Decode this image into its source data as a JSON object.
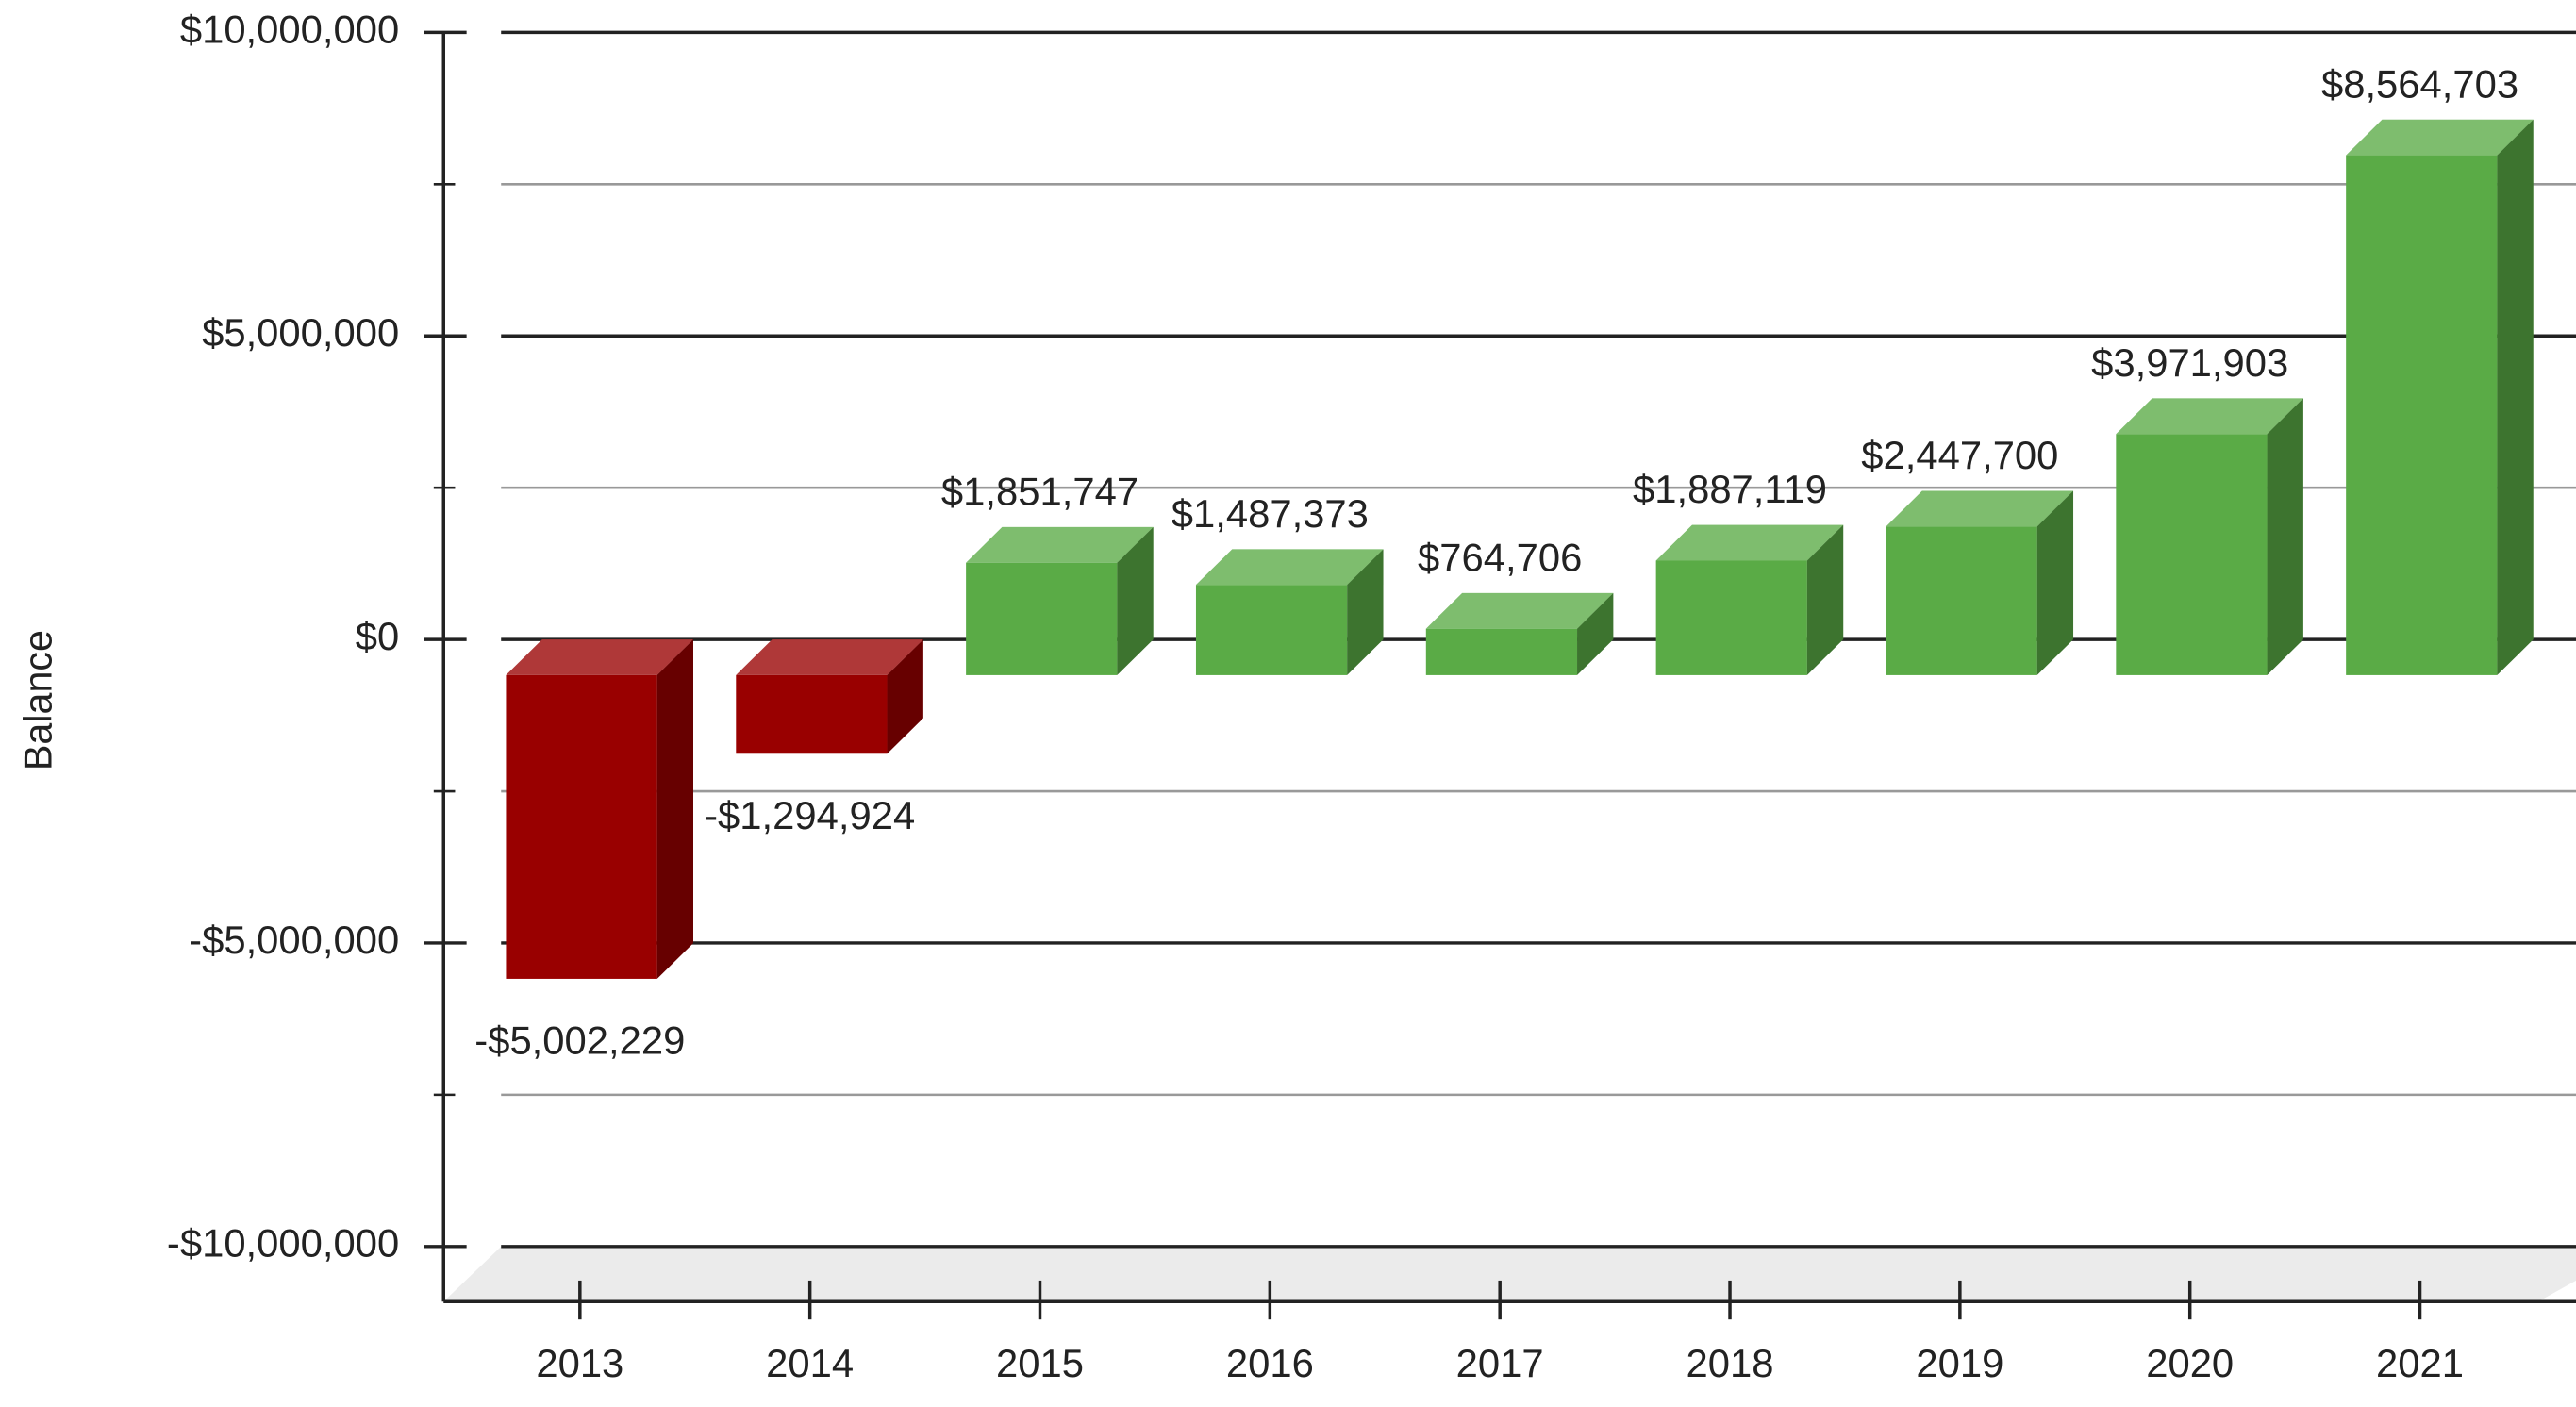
{
  "chart_data": {
    "type": "bar3d",
    "y_label": "Balance",
    "categories": [
      "2013",
      "2014",
      "2015",
      "2016",
      "2017",
      "2018",
      "2019",
      "2020",
      "2021"
    ],
    "values": [
      -5002229,
      -1294924,
      1851747,
      1487373,
      764706,
      1887119,
      2447700,
      3971903,
      8564703
    ],
    "value_labels": [
      "-$5,002,229",
      "-$1,294,924",
      "$1,851,747",
      "$1,487,373",
      "$764,706",
      "$1,887,119",
      "$2,447,700",
      "$3,971,903",
      "$8,564,703"
    ],
    "positive_color": "#5aab46",
    "negative_color": "#990000",
    "ylim": [
      -10000000,
      10000000
    ],
    "yticks": [
      {
        "value": -10000000,
        "label": "-$10,000,000"
      },
      {
        "value": -5000000,
        "label": "-$5,000,000"
      },
      {
        "value": 0,
        "label": "$0"
      },
      {
        "value": 5000000,
        "label": "$5,000,000"
      },
      {
        "value": 10000000,
        "label": "$10,000,000"
      }
    ],
    "minor_yticks": [
      -7500000,
      -2500000,
      2500000,
      7500000
    ],
    "grid": true
  }
}
